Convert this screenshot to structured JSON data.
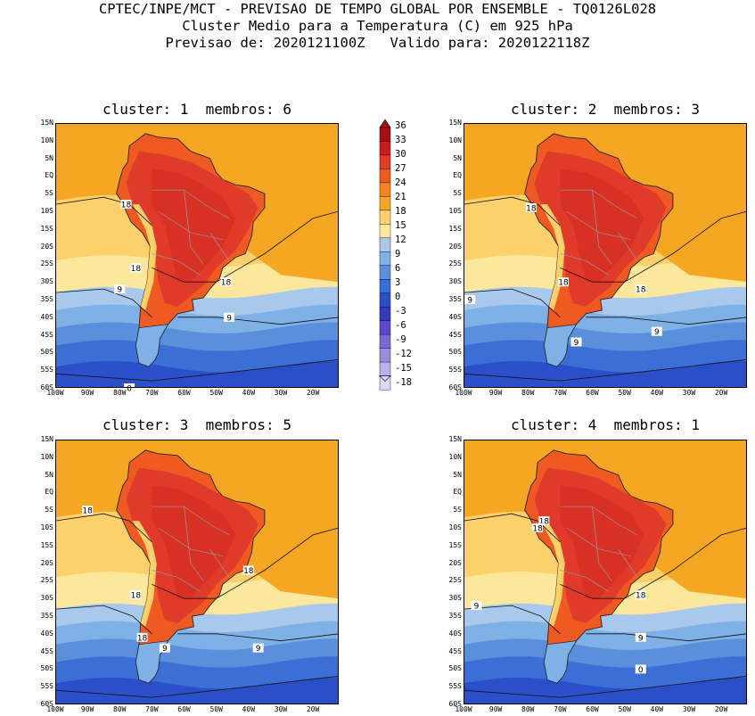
{
  "header": {
    "line1": "CPTEC/INPE/MCT - PREVISAO DE TEMPO GLOBAL POR ENSEMBLE - TQ0126L028",
    "line2": "Cluster Medio para a Temperatura (C) em 925 hPa",
    "line3": "Previsao de: 2020121100Z   Valido para: 2020122118Z"
  },
  "panels": [
    {
      "title": "cluster: 1  membros: 6",
      "contour_labels": [
        {
          "v": "18",
          "lon": -78,
          "lat": -8
        },
        {
          "v": "18",
          "lon": -75,
          "lat": -26
        },
        {
          "v": "18",
          "lon": -47,
          "lat": -30
        },
        {
          "v": "9",
          "lon": -80,
          "lat": -32
        },
        {
          "v": "9",
          "lon": -46,
          "lat": -40
        },
        {
          "v": "0",
          "lon": -77,
          "lat": -60
        }
      ]
    },
    {
      "title": "cluster: 2  membros: 3",
      "contour_labels": [
        {
          "v": "18",
          "lon": -79,
          "lat": -9
        },
        {
          "v": "18",
          "lon": -69,
          "lat": -30
        },
        {
          "v": "18",
          "lon": -45,
          "lat": -32
        },
        {
          "v": "9",
          "lon": -98,
          "lat": -35
        },
        {
          "v": "9",
          "lon": -65,
          "lat": -47
        },
        {
          "v": "9",
          "lon": -40,
          "lat": -44
        }
      ]
    },
    {
      "title": "cluster: 3  membros: 5",
      "contour_labels": [
        {
          "v": "18",
          "lon": -90,
          "lat": -5
        },
        {
          "v": "18",
          "lon": -40,
          "lat": -22
        },
        {
          "v": "18",
          "lon": -75,
          "lat": -29
        },
        {
          "v": "18",
          "lon": -73,
          "lat": -41
        },
        {
          "v": "9",
          "lon": -66,
          "lat": -44
        },
        {
          "v": "9",
          "lon": -37,
          "lat": -44
        }
      ]
    },
    {
      "title": "cluster: 4  membros: 1",
      "contour_labels": [
        {
          "v": "18",
          "lon": -75,
          "lat": -8
        },
        {
          "v": "18",
          "lon": -77,
          "lat": -10
        },
        {
          "v": "18",
          "lon": -45,
          "lat": -29
        },
        {
          "v": "9",
          "lon": -96,
          "lat": -32
        },
        {
          "v": "9",
          "lon": -45,
          "lat": -41
        },
        {
          "v": "0",
          "lon": -45,
          "lat": -50
        }
      ]
    }
  ],
  "lat_ticks": [
    "15N",
    "10N",
    "5N",
    "EQ",
    "5S",
    "10S",
    "15S",
    "20S",
    "25S",
    "30S",
    "35S",
    "40S",
    "45S",
    "50S",
    "55S",
    "60S"
  ],
  "lon_ticks": [
    "100W",
    "90W",
    "80W",
    "70W",
    "60W",
    "50W",
    "40W",
    "30W",
    "20W"
  ],
  "colorbar": {
    "labels": [
      "36",
      "33",
      "30",
      "27",
      "24",
      "21",
      "18",
      "15",
      "12",
      "9",
      "6",
      "3",
      "0",
      "-3",
      "-6",
      "-9",
      "-12",
      "-15",
      "-18"
    ],
    "colors": [
      "#a50f15",
      "#c81e1e",
      "#e03a2a",
      "#ee5a22",
      "#f2861f",
      "#f5a623",
      "#fcd06a",
      "#fbe89c",
      "#a8c8ec",
      "#7fb0e6",
      "#5a8fdc",
      "#3b6fd6",
      "#2a4fc8",
      "#3a38b8",
      "#5a4bc4",
      "#7a6ad0",
      "#9a8bdc",
      "#bdb0ea",
      "#ddd6f5"
    ]
  }
}
